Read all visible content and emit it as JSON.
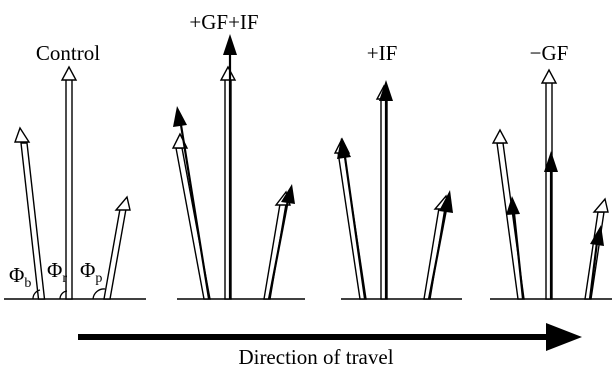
{
  "panels": [
    {
      "label": "Control"
    },
    {
      "label": "+GF+IF"
    },
    {
      "label": "+IF"
    },
    {
      "label": "−GF"
    }
  ],
  "angles": {
    "phi": "Φ",
    "b": "b",
    "r": "r",
    "p": "p"
  },
  "travel": {
    "caption": "Direction of travel"
  }
}
